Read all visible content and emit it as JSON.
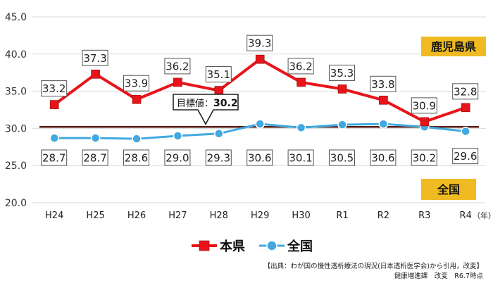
{
  "chart_data": {
    "type": "line",
    "categories": [
      "H24",
      "H25",
      "H26",
      "H27",
      "H28",
      "H29",
      "H30",
      "R1",
      "R2",
      "R3",
      "R4"
    ],
    "x_unit": "（年）",
    "ylim": [
      20.0,
      45.0
    ],
    "yticks": [
      "20.0",
      "25.0",
      "30.0",
      "35.0",
      "40.0",
      "45.0"
    ],
    "grid": true,
    "series": [
      {
        "name": "本県",
        "color": "#e8141a",
        "values": [
          33.2,
          37.3,
          33.9,
          36.2,
          35.1,
          39.3,
          36.2,
          35.3,
          33.8,
          30.9,
          32.8
        ],
        "end_label": "鹿児島県"
      },
      {
        "name": "全国",
        "color": "#41a9df",
        "values": [
          28.7,
          28.7,
          28.6,
          29.0,
          29.3,
          30.6,
          30.1,
          30.5,
          30.6,
          30.2,
          29.6
        ],
        "end_label": "全国"
      }
    ],
    "target": {
      "value": 30.2,
      "label": "目標値：",
      "label_value": "30.2",
      "color": "#5a1e16"
    },
    "legend_position": "bottom-center"
  },
  "source": {
    "line1": "【出典：わが国の慢性透析療法の現況(日本透析医学会)から引用，改変】",
    "line2": "健康増進課　改変　R6.7時点"
  }
}
